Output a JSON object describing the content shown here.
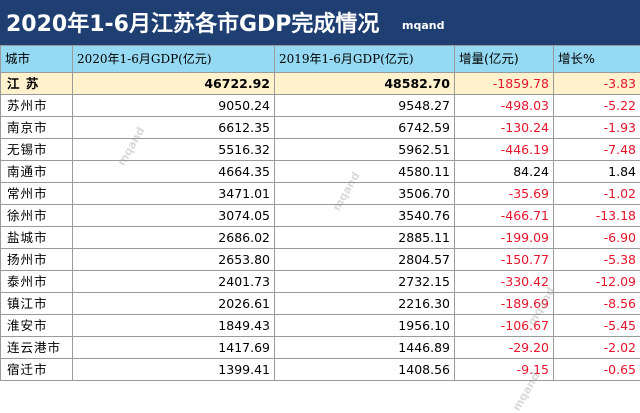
{
  "title": "2020年1-6月江苏各市GDP完成情况",
  "watermark": "mqand",
  "columns": [
    "城市",
    "2020年1-6月GDP(亿元)",
    "2019年1-6月GDP(亿元)",
    "增量(亿元)",
    "增长%"
  ],
  "rows": [
    {
      "city": "江  苏",
      "gdp2020": "46722.92",
      "gdp2019": "48582.70",
      "increase": "-1859.78",
      "growth": "-3.83"
    },
    {
      "city": "苏州市",
      "gdp2020": "9050.24",
      "gdp2019": "9548.27",
      "increase": "-498.03",
      "growth": "-5.22"
    },
    {
      "city": "南京市",
      "gdp2020": "6612.35",
      "gdp2019": "6742.59",
      "increase": "-130.24",
      "growth": "-1.93"
    },
    {
      "city": "无锡市",
      "gdp2020": "5516.32",
      "gdp2019": "5962.51",
      "increase": "-446.19",
      "growth": "-7.48"
    },
    {
      "city": "南通市",
      "gdp2020": "4664.35",
      "gdp2019": "4580.11",
      "increase": "84.24",
      "growth": "1.84"
    },
    {
      "city": "常州市",
      "gdp2020": "3471.01",
      "gdp2019": "3506.70",
      "increase": "-35.69",
      "growth": "-1.02"
    },
    {
      "city": "徐州市",
      "gdp2020": "3074.05",
      "gdp2019": "3540.76",
      "increase": "-466.71",
      "growth": "-13.18"
    },
    {
      "city": "盐城市",
      "gdp2020": "2686.02",
      "gdp2019": "2885.11",
      "increase": "-199.09",
      "growth": "-6.90"
    },
    {
      "city": "扬州市",
      "gdp2020": "2653.80",
      "gdp2019": "2804.57",
      "increase": "-150.77",
      "growth": "-5.38"
    },
    {
      "city": "泰州市",
      "gdp2020": "2401.73",
      "gdp2019": "2732.15",
      "increase": "-330.42",
      "growth": "-12.09"
    },
    {
      "city": "镇江市",
      "gdp2020": "2026.61",
      "gdp2019": "2216.30",
      "increase": "-189.69",
      "growth": "-8.56"
    },
    {
      "city": "淮安市",
      "gdp2020": "1849.43",
      "gdp2019": "1956.10",
      "increase": "-106.67",
      "growth": "-5.45"
    },
    {
      "city": "连云港市",
      "gdp2020": "1417.69",
      "gdp2019": "1446.89",
      "increase": "-29.20",
      "growth": "-2.02"
    },
    {
      "city": "宿迁市",
      "gdp2020": "1399.41",
      "gdp2019": "1408.56",
      "increase": "-9.15",
      "growth": "-0.65"
    }
  ],
  "colors": {
    "title_bg": "#1f3f73",
    "header_bg": "#95d9f2",
    "negative": "#e8142c",
    "total_row_bg": "#fff2cc"
  }
}
